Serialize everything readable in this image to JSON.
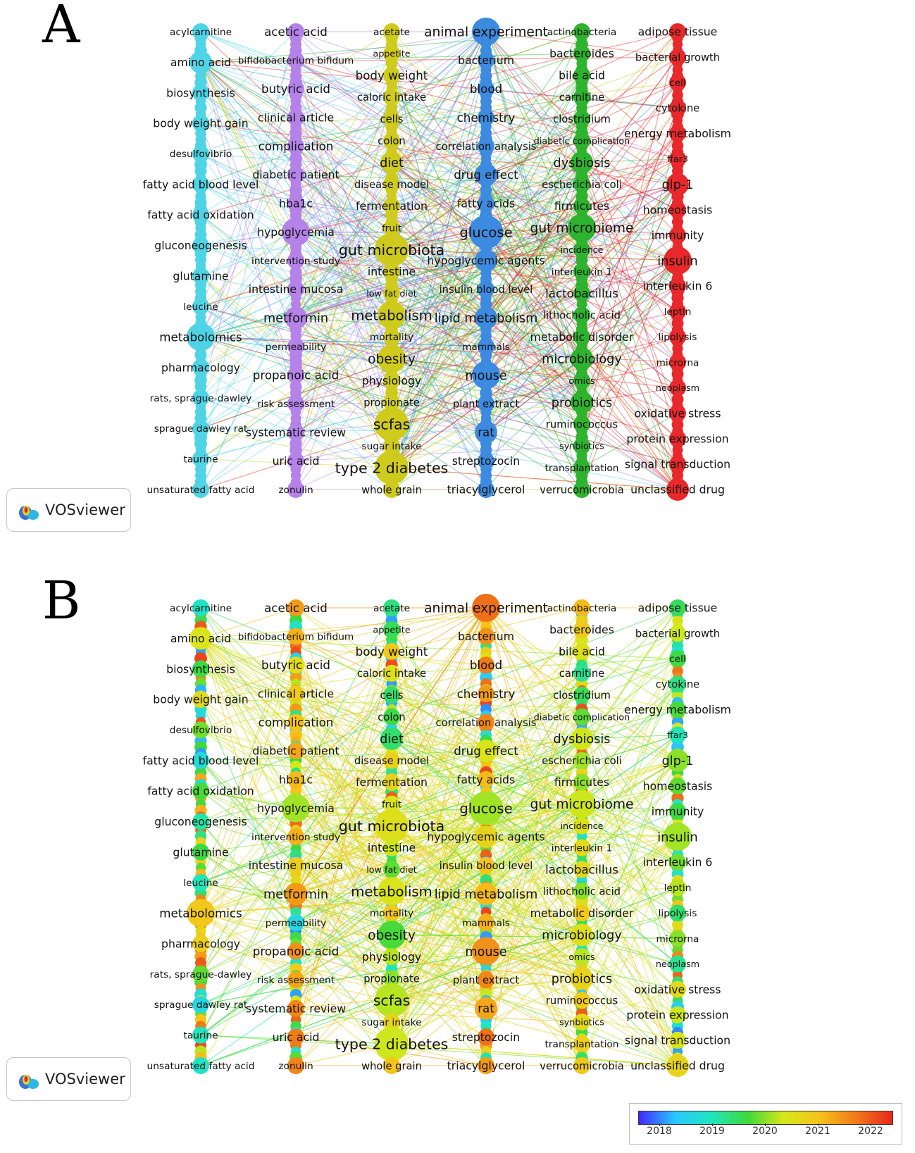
{
  "panels": [
    {
      "id": "A",
      "letter": "A",
      "color_mode": "cluster"
    },
    {
      "id": "B",
      "letter": "B",
      "color_mode": "year"
    }
  ],
  "logo": {
    "text": "VOSviewer",
    "icon": "vosviewer-logo-icon"
  },
  "legend": {
    "ticks": [
      "2018",
      "2019",
      "2020",
      "2021",
      "2022"
    ],
    "range": [
      2017.6,
      2022.4
    ],
    "gradient": [
      "#3f27ff",
      "#2bc8ff",
      "#1fe6c0",
      "#3fd93a",
      "#d6e81a",
      "#f6c21a",
      "#f07a18",
      "#e8261e"
    ]
  },
  "clusters": [
    {
      "id": "c1",
      "color": "#4fd4e6",
      "terms": [
        {
          "label": "acylcarnitine",
          "size": 14,
          "year": 2018.9,
          "weight": 1
        },
        {
          "label": "amino acid",
          "size": 16,
          "year": 2020.4,
          "weight": 2
        },
        {
          "label": "biosynthesis",
          "size": 16,
          "year": 2019.6,
          "weight": 1
        },
        {
          "label": "body weight gain",
          "size": 16,
          "year": 2020.6,
          "weight": 1
        },
        {
          "label": "desulfovibrio",
          "size": 14,
          "year": 2019.9,
          "weight": 1
        },
        {
          "label": "fatty acid blood level",
          "size": 16,
          "year": 2018.7,
          "weight": 1
        },
        {
          "label": "fatty acid oxidation",
          "size": 16,
          "year": 2019.7,
          "weight": 1
        },
        {
          "label": "gluconeogenesis",
          "size": 16,
          "year": 2019.1,
          "weight": 1
        },
        {
          "label": "glutamine",
          "size": 16,
          "year": 2019.6,
          "weight": 1
        },
        {
          "label": "leucine",
          "size": 14,
          "year": 2019.0,
          "weight": 1
        },
        {
          "label": "metabolomics",
          "size": 17,
          "year": 2020.9,
          "weight": 3
        },
        {
          "label": "pharmacology",
          "size": 16,
          "year": 2020.8,
          "weight": 1
        },
        {
          "label": "rats, sprague-dawley",
          "size": 14,
          "year": 2019.8,
          "weight": 1
        },
        {
          "label": "sprague dawley rat",
          "size": 14,
          "year": 2018.6,
          "weight": 1
        },
        {
          "label": "taurine",
          "size": 14,
          "year": 2019.0,
          "weight": 1
        },
        {
          "label": "unsaturated fatty acid",
          "size": 14,
          "year": 2018.9,
          "weight": 1
        }
      ]
    },
    {
      "id": "c2",
      "color": "#b482e8",
      "terms": [
        {
          "label": "acetic acid",
          "size": 17,
          "year": 2021.4,
          "weight": 1
        },
        {
          "label": "bifidobacterium bifidum",
          "size": 14,
          "year": 2021.2,
          "weight": 1
        },
        {
          "label": "butyric acid",
          "size": 17,
          "year": 2020.6,
          "weight": 1
        },
        {
          "label": "clinical article",
          "size": 16,
          "year": 2020.9,
          "weight": 1
        },
        {
          "label": "complication",
          "size": 17,
          "year": 2021.0,
          "weight": 1
        },
        {
          "label": "diabetic patient",
          "size": 16,
          "year": 2021.3,
          "weight": 1
        },
        {
          "label": "hba1c",
          "size": 16,
          "year": 2021.1,
          "weight": 1
        },
        {
          "label": "hypoglycemia",
          "size": 16,
          "year": 2020.1,
          "weight": 3
        },
        {
          "label": "intervention study",
          "size": 14,
          "year": 2021.2,
          "weight": 1
        },
        {
          "label": "intestine mucosa",
          "size": 16,
          "year": 2020.8,
          "weight": 1
        },
        {
          "label": "metformin",
          "size": 18,
          "year": 2021.4,
          "weight": 2
        },
        {
          "label": "permeability",
          "size": 14,
          "year": 2018.6,
          "weight": 1
        },
        {
          "label": "propanoic acid",
          "size": 17,
          "year": 2021.5,
          "weight": 1
        },
        {
          "label": "risk assessment",
          "size": 14,
          "year": 2021.3,
          "weight": 1
        },
        {
          "label": "systematic review",
          "size": 16,
          "year": 2021.6,
          "weight": 1
        },
        {
          "label": "uric acid",
          "size": 16,
          "year": 2021.7,
          "weight": 1
        },
        {
          "label": "zonulin",
          "size": 14,
          "year": 2021.6,
          "weight": 1
        }
      ]
    },
    {
      "id": "c3",
      "color": "#cfcb1d",
      "terms": [
        {
          "label": "acetate",
          "size": 14,
          "year": 2019.3,
          "weight": 1
        },
        {
          "label": "appetite",
          "size": 13,
          "year": 2019.5,
          "weight": 1
        },
        {
          "label": "body weight",
          "size": 17,
          "year": 2020.9,
          "weight": 1
        },
        {
          "label": "caloric intake",
          "size": 15,
          "year": 2020.5,
          "weight": 1
        },
        {
          "label": "cells",
          "size": 15,
          "year": 2019.4,
          "weight": 1
        },
        {
          "label": "colon",
          "size": 15,
          "year": 2019.6,
          "weight": 1
        },
        {
          "label": "diet",
          "size": 18,
          "year": 2019.4,
          "weight": 2
        },
        {
          "label": "disease model",
          "size": 15,
          "year": 2020.8,
          "weight": 1
        },
        {
          "label": "fermentation",
          "size": 16,
          "year": 2020.7,
          "weight": 1
        },
        {
          "label": "fruit",
          "size": 14,
          "year": 2020.4,
          "weight": 1
        },
        {
          "label": "gut microbiota",
          "size": 21,
          "year": 2020.5,
          "weight": 4
        },
        {
          "label": "intestine",
          "size": 16,
          "year": 2020.3,
          "weight": 1
        },
        {
          "label": "low fat diet",
          "size": 13,
          "year": 2019.8,
          "weight": 1
        },
        {
          "label": "metabolism",
          "size": 20,
          "year": 2020.4,
          "weight": 3
        },
        {
          "label": "mortality",
          "size": 14,
          "year": 2020.9,
          "weight": 1
        },
        {
          "label": "obesity",
          "size": 19,
          "year": 2019.7,
          "weight": 3
        },
        {
          "label": "physiology",
          "size": 16,
          "year": 2020.2,
          "weight": 1
        },
        {
          "label": "propionate",
          "size": 15,
          "year": 2020.0,
          "weight": 1
        },
        {
          "label": "scfas",
          "size": 21,
          "year": 2020.2,
          "weight": 4
        },
        {
          "label": "sugar intake",
          "size": 14,
          "year": 2020.7,
          "weight": 1
        },
        {
          "label": "type 2 diabetes",
          "size": 21,
          "year": 2020.3,
          "weight": 4
        },
        {
          "label": "whole grain",
          "size": 15,
          "year": 2021.0,
          "weight": 1
        }
      ]
    },
    {
      "id": "c4",
      "color": "#3d8be0",
      "terms": [
        {
          "label": "animal experiment",
          "size": 19,
          "year": 2021.8,
          "weight": 3
        },
        {
          "label": "bacterium",
          "size": 16,
          "year": 2021.5,
          "weight": 1
        },
        {
          "label": "blood",
          "size": 17,
          "year": 2021.7,
          "weight": 1
        },
        {
          "label": "chemistry",
          "size": 17,
          "year": 2021.4,
          "weight": 1
        },
        {
          "label": "correlation analysis",
          "size": 15,
          "year": 2021.6,
          "weight": 1
        },
        {
          "label": "drug effect",
          "size": 17,
          "year": 2020.4,
          "weight": 2
        },
        {
          "label": "fatty acids",
          "size": 16,
          "year": 2021.1,
          "weight": 1
        },
        {
          "label": "glucose",
          "size": 20,
          "year": 2020.1,
          "weight": 4
        },
        {
          "label": "hypoglycemic agents",
          "size": 16,
          "year": 2020.7,
          "weight": 2
        },
        {
          "label": "insulin blood level",
          "size": 15,
          "year": 2021.0,
          "weight": 1
        },
        {
          "label": "lipid metabolism",
          "size": 18,
          "year": 2021.1,
          "weight": 2
        },
        {
          "label": "mammals",
          "size": 14,
          "year": 2021.2,
          "weight": 1
        },
        {
          "label": "mouse",
          "size": 18,
          "year": 2021.5,
          "weight": 3
        },
        {
          "label": "plant extract",
          "size": 15,
          "year": 2021.6,
          "weight": 1
        },
        {
          "label": "rat",
          "size": 17,
          "year": 2021.3,
          "weight": 2
        },
        {
          "label": "streptozocin",
          "size": 16,
          "year": 2021.8,
          "weight": 1
        },
        {
          "label": "triacylglycerol",
          "size": 16,
          "year": 2021.4,
          "weight": 1
        }
      ]
    },
    {
      "id": "c5",
      "color": "#2eb32e",
      "terms": [
        {
          "label": "actinobacteria",
          "size": 14,
          "year": 2021.1,
          "weight": 1
        },
        {
          "label": "bacteroides",
          "size": 16,
          "year": 2020.9,
          "weight": 1
        },
        {
          "label": "bile acid",
          "size": 16,
          "year": 2020.5,
          "weight": 1
        },
        {
          "label": "carnitine",
          "size": 15,
          "year": 2019.2,
          "weight": 1
        },
        {
          "label": "clostridium",
          "size": 15,
          "year": 2019.5,
          "weight": 1
        },
        {
          "label": "diabetic complication",
          "size": 13,
          "year": 2019.8,
          "weight": 1
        },
        {
          "label": "dysbiosis",
          "size": 18,
          "year": 2020.3,
          "weight": 2
        },
        {
          "label": "escherichia coli",
          "size": 15,
          "year": 2020.1,
          "weight": 1
        },
        {
          "label": "firmicutes",
          "size": 16,
          "year": 2020.0,
          "weight": 1
        },
        {
          "label": "gut microbiome",
          "size": 19,
          "year": 2020.3,
          "weight": 3
        },
        {
          "label": "incidence",
          "size": 13,
          "year": 2020.5,
          "weight": 1
        },
        {
          "label": "interleukin 1",
          "size": 14,
          "year": 2020.6,
          "weight": 1
        },
        {
          "label": "lactobacillus",
          "size": 17,
          "year": 2020.6,
          "weight": 1
        },
        {
          "label": "lithocholic acid",
          "size": 15,
          "year": 2020.0,
          "weight": 1
        },
        {
          "label": "metabolic disorder",
          "size": 16,
          "year": 2020.9,
          "weight": 1
        },
        {
          "label": "microbiology",
          "size": 18,
          "year": 2020.5,
          "weight": 2
        },
        {
          "label": "omics",
          "size": 13,
          "year": 2020.2,
          "weight": 1
        },
        {
          "label": "probiotics",
          "size": 18,
          "year": 2020.7,
          "weight": 2
        },
        {
          "label": "ruminococcus",
          "size": 15,
          "year": 2020.9,
          "weight": 1
        },
        {
          "label": "synbiotics",
          "size": 13,
          "year": 2020.6,
          "weight": 1
        },
        {
          "label": "transplantation",
          "size": 14,
          "year": 2020.8,
          "weight": 1
        },
        {
          "label": "verrucomicrobia",
          "size": 15,
          "year": 2020.9,
          "weight": 1
        }
      ]
    },
    {
      "id": "c6",
      "color": "#e8282a",
      "terms": [
        {
          "label": "adipose tissue",
          "size": 16,
          "year": 2019.5,
          "weight": 1
        },
        {
          "label": "bacterial growth",
          "size": 15,
          "year": 2020.3,
          "weight": 1
        },
        {
          "label": "cell",
          "size": 14,
          "year": 2019.6,
          "weight": 1
        },
        {
          "label": "cytokine",
          "size": 15,
          "year": 2019.3,
          "weight": 1
        },
        {
          "label": "energy metabolism",
          "size": 16,
          "year": 2019.7,
          "weight": 1
        },
        {
          "label": "ffar3",
          "size": 13,
          "year": 2019.0,
          "weight": 1
        },
        {
          "label": "glp-1",
          "size": 18,
          "year": 2020.0,
          "weight": 2
        },
        {
          "label": "homeostasis",
          "size": 16,
          "year": 2019.8,
          "weight": 1
        },
        {
          "label": "immunity",
          "size": 16,
          "year": 2019.6,
          "weight": 1
        },
        {
          "label": "insulin",
          "size": 18,
          "year": 2020.1,
          "weight": 3
        },
        {
          "label": "interleukin 6",
          "size": 16,
          "year": 2019.9,
          "weight": 1
        },
        {
          "label": "leptin",
          "size": 14,
          "year": 2020.2,
          "weight": 1
        },
        {
          "label": "lipolysis",
          "size": 14,
          "year": 2019.4,
          "weight": 1
        },
        {
          "label": "microrna",
          "size": 14,
          "year": 2020.0,
          "weight": 1
        },
        {
          "label": "neoplasm",
          "size": 13,
          "year": 2019.2,
          "weight": 1
        },
        {
          "label": "oxidative stress",
          "size": 16,
          "year": 2020.6,
          "weight": 1
        },
        {
          "label": "protein expression",
          "size": 16,
          "year": 2020.3,
          "weight": 1
        },
        {
          "label": "signal transduction",
          "size": 16,
          "year": 2020.4,
          "weight": 1
        },
        {
          "label": "unclassified drug",
          "size": 16,
          "year": 2020.7,
          "weight": 2
        }
      ]
    }
  ]
}
